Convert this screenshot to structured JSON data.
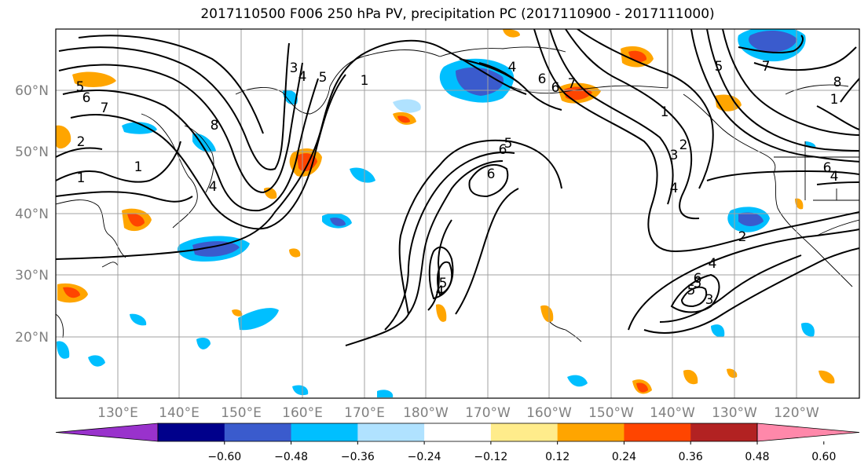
{
  "title": "2017110500 F006 250 hPa PV, precipitation PC (2017110900 - 2017111000)",
  "lat_labels": [
    "60°N",
    "50°N",
    "40°N",
    "30°N",
    "20°N"
  ],
  "lon_labels": [
    "130°E",
    "140°E",
    "150°E",
    "160°E",
    "170°E",
    "180°W",
    "170°W",
    "160°W",
    "150°W",
    "140°W",
    "130°W",
    "120°W"
  ],
  "colorbar": {
    "tick_labels": [
      "-0.60",
      "-0.48",
      "-0.36",
      "-0.24",
      "-0.12",
      "0.12",
      "0.24",
      "0.36",
      "0.48",
      "0.60"
    ],
    "colors": [
      "#9932cc",
      "#00008b",
      "#3a5bcd",
      "#00bfff",
      "#b0e2ff",
      "#ffffff",
      "#ffec8b",
      "#ffa500",
      "#ff4500",
      "#b22222",
      "#ff88aa"
    ]
  },
  "contour_labels": [
    "5",
    "6",
    "7",
    "2",
    "1",
    "1",
    "8",
    "4",
    "3",
    "4",
    "5",
    "1",
    "5",
    "4",
    "6",
    "6",
    "5",
    "4",
    "6",
    "7",
    "6",
    "1",
    "2",
    "3",
    "4",
    "5",
    "7",
    "8",
    "1",
    "6",
    "4",
    "2",
    "6",
    "5",
    "4",
    "5",
    "3"
  ]
}
